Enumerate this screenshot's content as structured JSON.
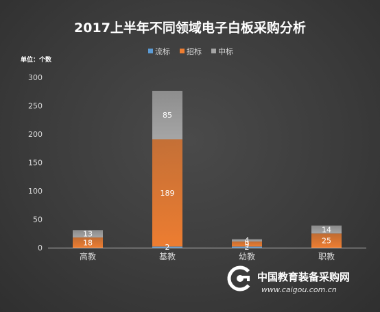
{
  "chart_data": {
    "type": "bar",
    "stacked": true,
    "title": "2017上半年不同领域电子白板采购分析",
    "unit_label": "单位：个数",
    "categories": [
      "高教",
      "基教",
      "幼教",
      "职教"
    ],
    "series": [
      {
        "name": "流标",
        "color": "#5b9bd5",
        "values": [
          0,
          2,
          2,
          0
        ],
        "labels": [
          "",
          "2",
          "2",
          ""
        ]
      },
      {
        "name": "招标",
        "color": "#ed7d31",
        "values": [
          18,
          189,
          9,
          25
        ],
        "labels": [
          "18",
          "189",
          "9",
          "25"
        ]
      },
      {
        "name": "中标",
        "color": "#a5a5a5",
        "values": [
          13,
          85,
          4,
          14
        ],
        "labels": [
          "13",
          "85",
          "4",
          "14"
        ]
      }
    ],
    "ylim": [
      0,
      300
    ],
    "yticks": [
      0,
      50,
      100,
      150,
      200,
      250,
      300
    ],
    "grid": false,
    "legend": "top-center"
  },
  "watermark": {
    "name": "中国教育装备采购网",
    "url": "www.caigou.com.cn",
    "logo_icon": "caigou-logo-icon"
  }
}
